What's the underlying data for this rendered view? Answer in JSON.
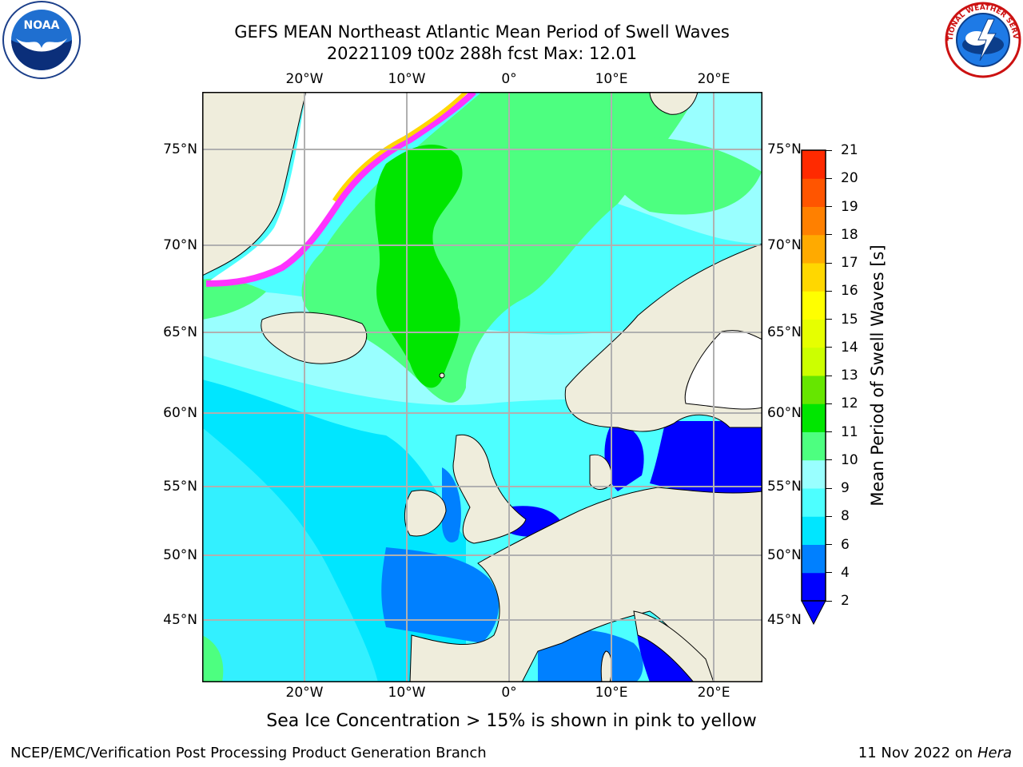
{
  "header": {
    "title_line1": "GEFS MEAN Northeast Atlantic Mean Period of Swell Waves",
    "title_line2": "20221109 t00z 288h fcst   Max: 12.01"
  },
  "logos": {
    "left": {
      "name": "noaa-logo",
      "text": "NOAA",
      "ring_text": "NATIONAL OCEANIC AND ATMOSPHERIC ADMINISTRATION · U.S. DEPARTMENT OF COMMERCE"
    },
    "right": {
      "name": "nws-logo",
      "ring_text": "NATIONAL WEATHER SERVICE"
    }
  },
  "map": {
    "lon_ticks": [
      "20°W",
      "10°W",
      "0°",
      "10°E",
      "20°E"
    ],
    "lat_ticks": [
      "75°N",
      "70°N",
      "65°N",
      "60°N",
      "55°N",
      "50°N",
      "45°N"
    ],
    "colors": {
      "land": "#efeddc",
      "ice_pink": "#ff33ff",
      "ice_yellow": "#ffd700"
    }
  },
  "colorbar": {
    "title": "Mean Period of Swell Waves [s]",
    "levels": [
      "2",
      "4",
      "6",
      "8",
      "9",
      "10",
      "11",
      "12",
      "13",
      "14",
      "15",
      "16",
      "17",
      "18",
      "19",
      "20",
      "21"
    ],
    "colors": [
      "#0000ff",
      "#0080ff",
      "#00e6ff",
      "#4dffff",
      "#99ffff",
      "#4dff80",
      "#00e600",
      "#66e600",
      "#ccff00",
      "#e6ff00",
      "#ffff00",
      "#ffd700",
      "#ffaa00",
      "#ff8000",
      "#ff5500",
      "#ff2a00",
      "#ff0000"
    ]
  },
  "footer": {
    "ice_note": "Sea Ice Concentration > 15% is shown in pink to yellow",
    "branch": "NCEP/EMC/Verification Post Processing Product Generation Branch",
    "date": "11 Nov 2022 on",
    "host": "Hera"
  }
}
